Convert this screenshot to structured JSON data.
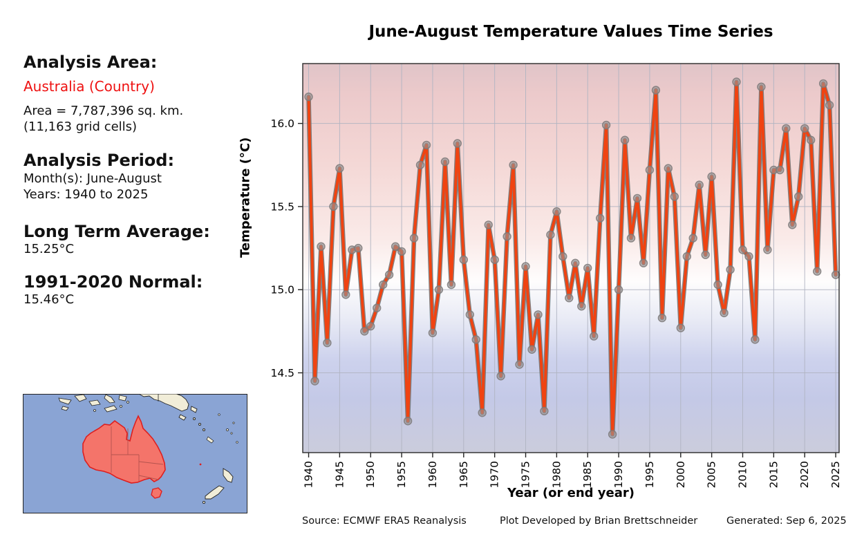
{
  "title": "June-August Temperature Values Time Series",
  "info_panel": {
    "area_heading": "Analysis Area:",
    "area_name": "Australia (Country)",
    "area_size_line1": "Area = 7,787,396 sq. km.",
    "area_size_line2": "(11,163 grid cells)",
    "period_heading": "Analysis Period:",
    "period_months": "Month(s): June-August",
    "period_years": "Years: 1940 to 2025",
    "lta_heading": "Long Term Average:",
    "lta_value": "15.25°C",
    "normal_heading": "1991-2020 Normal:",
    "normal_value": "15.46°C"
  },
  "footer": {
    "source": "Source: ECMWF ERA5 Reanalysis",
    "credit": "Plot Developed by Brian Brettschneider",
    "generated": "Generated: Sep 6, 2025"
  },
  "colors": {
    "line": "#f04311",
    "line_edge": "#6f6f6f",
    "marker_fill": "#9b9595",
    "marker_edge": "#7d7a7a",
    "grid": "#b0b4c2",
    "plot_border": "#2a2a2a",
    "tick_text": "#000000",
    "map_ocean": "#8aa4d4",
    "map_land": "#f1edd8",
    "map_australia_fill": "#f4746a",
    "map_australia_edge": "#dd1f1f",
    "map_state_border": "#b4534e",
    "map_coast": "#222222"
  },
  "chart_data": {
    "type": "line",
    "title": "June-August Temperature Values Time Series",
    "xlabel": "Year (or end year)",
    "ylabel": "Temperature (°C)",
    "grid": true,
    "legend": "none",
    "xlim": [
      1939.05,
      2025.55
    ],
    "ylim": [
      14.02,
      16.36
    ],
    "xticks": [
      1940,
      1945,
      1950,
      1955,
      1960,
      1965,
      1970,
      1975,
      1980,
      1985,
      1990,
      1995,
      2000,
      2005,
      2010,
      2015,
      2020,
      2025
    ],
    "yticks": [
      14.5,
      15.0,
      15.5,
      16.0
    ],
    "ytick_labels": [
      "14.5",
      "15.0",
      "15.5",
      "16.0"
    ],
    "years": [
      1940,
      1941,
      1942,
      1943,
      1944,
      1945,
      1946,
      1947,
      1948,
      1949,
      1950,
      1951,
      1952,
      1953,
      1954,
      1955,
      1956,
      1957,
      1958,
      1959,
      1960,
      1961,
      1962,
      1963,
      1964,
      1965,
      1966,
      1967,
      1968,
      1969,
      1970,
      1971,
      1972,
      1973,
      1974,
      1975,
      1976,
      1977,
      1978,
      1979,
      1980,
      1981,
      1982,
      1983,
      1984,
      1985,
      1986,
      1987,
      1988,
      1989,
      1990,
      1991,
      1992,
      1993,
      1994,
      1995,
      1996,
      1997,
      1998,
      1999,
      2000,
      2001,
      2002,
      2003,
      2004,
      2005,
      2006,
      2007,
      2008,
      2009,
      2010,
      2011,
      2012,
      2013,
      2014,
      2015,
      2016,
      2017,
      2018,
      2019,
      2020,
      2021,
      2022,
      2023,
      2024,
      2025
    ],
    "values": [
      16.16,
      14.45,
      15.26,
      14.68,
      15.5,
      15.73,
      14.97,
      15.24,
      15.25,
      14.75,
      14.78,
      14.89,
      15.03,
      15.09,
      15.26,
      15.23,
      14.21,
      15.31,
      15.75,
      15.87,
      14.74,
      15.0,
      15.77,
      15.03,
      15.88,
      15.18,
      14.85,
      14.7,
      14.26,
      15.39,
      15.18,
      14.48,
      15.32,
      15.75,
      14.55,
      15.14,
      14.64,
      14.85,
      14.27,
      15.33,
      15.47,
      15.2,
      14.95,
      15.16,
      14.9,
      15.13,
      14.72,
      15.43,
      15.99,
      14.13,
      15.0,
      15.9,
      15.31,
      15.55,
      15.16,
      15.72,
      16.2,
      14.83,
      15.73,
      15.56,
      14.77,
      15.2,
      15.31,
      15.63,
      15.21,
      15.68,
      15.03,
      14.86,
      15.12,
      16.25,
      15.24,
      15.2,
      14.7,
      16.22,
      15.24,
      15.72,
      15.72,
      15.97,
      15.39,
      15.56,
      15.97,
      15.9,
      15.11,
      16.24,
      16.11,
      15.09
    ],
    "bg_gradient": [
      [
        0.0,
        "#e0c4c8"
      ],
      [
        0.08,
        "#eccacb"
      ],
      [
        0.25,
        "#f4d7d5"
      ],
      [
        0.45,
        "#faeae8"
      ],
      [
        0.56,
        "#fefdfd"
      ],
      [
        0.66,
        "#e8eaf5"
      ],
      [
        0.76,
        "#cdd2ed"
      ],
      [
        0.86,
        "#c4c9e7"
      ],
      [
        1.0,
        "#cbccdc"
      ]
    ]
  }
}
